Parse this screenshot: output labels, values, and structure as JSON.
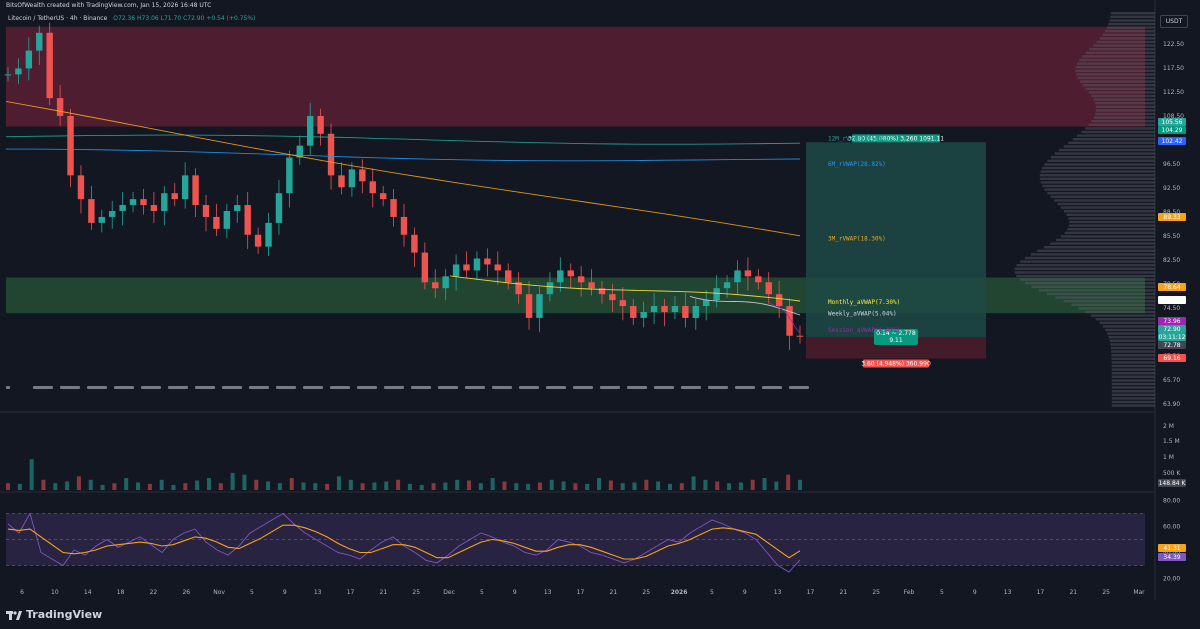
{
  "header": {
    "attribution": "BitsOfWealth created with TradingView.com, Jan 15, 2026 16:48 UTC"
  },
  "symbol": {
    "name": "Litecoin / TetherUS · 4h · Binance",
    "ohlc": "O72.36 H73.06 L71.70 C72.90 +0.54 (+0.75%)"
  },
  "currency_button": "USDT",
  "brand": "TradingView",
  "colors": {
    "background": "#131722",
    "up": "#26a69a",
    "down": "#ef5350",
    "resistance_zone": "#5b1f33",
    "support_zone": "#264d34",
    "long_target_zone": "#1d4a45",
    "long_stop_zone": "#4a1d2a",
    "rsi_band": "#2a2545"
  },
  "chart_data": [
    {
      "type": "candlestick",
      "title": "",
      "ylim": [
        60.5,
        127.5
      ],
      "y_ticks": [
        "122.50",
        "117.50",
        "112.50",
        "108.50",
        "100.50",
        "96.50",
        "92.50",
        "88.50",
        "85.50",
        "82.50",
        "78.50",
        "74.50",
        "70.50",
        "67.50",
        "65.70",
        "63.90"
      ],
      "x_ticks": [
        "6",
        "10",
        "14",
        "18",
        "22",
        "26",
        "Nov",
        "5",
        "9",
        "13",
        "17",
        "21",
        "25",
        "Dec",
        "5",
        "9",
        "13",
        "17",
        "21",
        "25",
        "2026",
        "5",
        "9",
        "13",
        "17",
        "21",
        "25",
        "Feb",
        "5",
        "9",
        "13",
        "17",
        "21",
        "25",
        "Mar"
      ],
      "zones": [
        {
          "name": "resistance",
          "from": 108.2,
          "to": 125.0
        },
        {
          "name": "support",
          "from": 76.8,
          "to": 82.8
        }
      ],
      "close_series_approx": [
        117,
        118,
        121,
        124,
        113,
        110,
        100,
        96,
        92,
        93,
        94,
        95,
        96,
        95,
        94,
        97,
        96,
        100,
        95,
        93,
        91,
        94,
        95,
        90,
        88,
        92,
        97,
        103,
        105,
        110,
        107,
        100,
        98,
        101,
        99,
        97,
        96,
        93,
        90,
        87,
        82,
        81,
        83,
        85,
        84,
        86,
        85,
        84,
        82,
        80,
        76,
        80,
        82,
        84,
        83,
        82,
        81,
        80,
        79,
        78,
        76,
        77,
        78,
        77,
        78,
        76,
        78,
        79,
        81,
        82,
        84,
        83,
        82,
        80,
        78,
        73,
        72.9
      ],
      "vwaps": [
        {
          "name": "12M_rVWAP(30.88%)",
          "value": 105.56,
          "color": "#26a69a"
        },
        {
          "name": "6M_rVWAP(28.82%)",
          "value": 102.42,
          "color": "#2196f3"
        },
        {
          "name": "3M_rVWAP(18.30%)",
          "value": 89.33,
          "color": "#f7a21b"
        },
        {
          "name": "Monthly_aVWAP(7.30%)",
          "value": 78.64,
          "color": "#ffeb3b"
        },
        {
          "name": "Weekly_aVWAP(5.04%)",
          "value": 76.77,
          "color": "#d1d4dc"
        },
        {
          "name": "Session_aVWAP(1.42%)",
          "value": 73.96,
          "color": "#9c27b0"
        }
      ],
      "price_tags": [
        {
          "label": "105.56",
          "color": "#26a69a"
        },
        {
          "label": "104.29",
          "color": "#089981"
        },
        {
          "label": "102.42",
          "color": "#2962ff"
        },
        {
          "label": "89.33",
          "color": "#f7a21b"
        },
        {
          "label": "78.64",
          "color": "#f7a21b"
        },
        {
          "label": "76.77",
          "color": "#ffffff"
        },
        {
          "label": "73.96",
          "color": "#9c27b0"
        },
        {
          "label": "72.90",
          "color": "#26a69a"
        },
        {
          "label": "03:11:12",
          "color": "#26a69a"
        },
        {
          "label": "72.78",
          "color": "#434651"
        },
        {
          "label": "69.16",
          "color": "#ef5350"
        }
      ],
      "position": {
        "target_label": "32.80 (45.080%) 3,260 1091.11",
        "entry_label": "0.14 ~ 2.778",
        "entry_sub": "9.11",
        "stop_label": "3.60 (4.948%) 360.990",
        "entry": 72.78,
        "target": 105.56,
        "stop": 69.16
      }
    },
    {
      "type": "bar",
      "title": "Volume",
      "y_ticks": [
        "2 M",
        "1.5 M",
        "1 M",
        "500 K"
      ],
      "last_label": "148.84 K",
      "values_approx": [
        0.2,
        0.18,
        0.9,
        0.3,
        0.2,
        0.25,
        0.4,
        0.3,
        0.15,
        0.2,
        0.35,
        0.22,
        0.18,
        0.3,
        0.15,
        0.2,
        0.28,
        0.35,
        0.2,
        0.5,
        0.45,
        0.3,
        0.25,
        0.2,
        0.35,
        0.22,
        0.2,
        0.18,
        0.4,
        0.3,
        0.2,
        0.22,
        0.25,
        0.3,
        0.18,
        0.15,
        0.2,
        0.22,
        0.3,
        0.28,
        0.2,
        0.35,
        0.25,
        0.2,
        0.18,
        0.22,
        0.3,
        0.25,
        0.2,
        0.18,
        0.35,
        0.28,
        0.2,
        0.22,
        0.3,
        0.25,
        0.18,
        0.2,
        0.4,
        0.3,
        0.25,
        0.2,
        0.22,
        0.3,
        0.35,
        0.25,
        0.45,
        0.3
      ]
    },
    {
      "type": "line",
      "title": "RSI",
      "ylim": [
        15,
        85
      ],
      "y_ticks": [
        "80.00",
        "60.00",
        "40.00",
        "20.00"
      ],
      "bands": [
        30,
        70
      ],
      "series": [
        {
          "name": "",
          "color": "#7e57c2",
          "values_approx": [
            62,
            55,
            70,
            40,
            35,
            30,
            42,
            38,
            45,
            50,
            44,
            48,
            52,
            46,
            40,
            50,
            55,
            58,
            48,
            42,
            38,
            45,
            55,
            60,
            65,
            70,
            62,
            55,
            50,
            45,
            40,
            38,
            35,
            42,
            48,
            52,
            45,
            40,
            34,
            32,
            38,
            45,
            50,
            55,
            52,
            48,
            45,
            40,
            38,
            42,
            50,
            48,
            45,
            40,
            38,
            35,
            32,
            35,
            40,
            45,
            50,
            48,
            55,
            60,
            65,
            62,
            58,
            55,
            50,
            40,
            30,
            25,
            34.39
          ]
        },
        {
          "name": "",
          "color": "#f7a21b",
          "values_approx": [
            58,
            57,
            58,
            52,
            46,
            40,
            39,
            40,
            42,
            45,
            46,
            47,
            48,
            47,
            45,
            46,
            49,
            52,
            51,
            48,
            44,
            43,
            47,
            51,
            56,
            61,
            61,
            59,
            56,
            52,
            47,
            43,
            40,
            40,
            43,
            46,
            46,
            44,
            40,
            36,
            36,
            40,
            44,
            48,
            50,
            49,
            47,
            44,
            41,
            41,
            44,
            46,
            46,
            44,
            41,
            38,
            35,
            35,
            37,
            41,
            45,
            47,
            50,
            54,
            58,
            59,
            58,
            56,
            54,
            48,
            42,
            36,
            41.31
          ]
        }
      ],
      "last_labels": [
        "41.31",
        "34.39"
      ]
    }
  ]
}
